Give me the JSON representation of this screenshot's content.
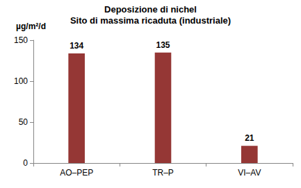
{
  "chart_data": {
    "type": "bar",
    "title": "Deposizione di nichel",
    "subtitle": "Sito di massima ricaduta (industriale)",
    "ylabel": "µg/m²/d",
    "categories": [
      "AO–PEP",
      "TR–P",
      "VI–AV"
    ],
    "values": [
      134,
      135,
      21
    ],
    "color": "#953735",
    "ylim": [
      0,
      150
    ],
    "yticks": [
      0,
      50,
      100,
      150
    ],
    "grid": false,
    "data_labels": true
  }
}
